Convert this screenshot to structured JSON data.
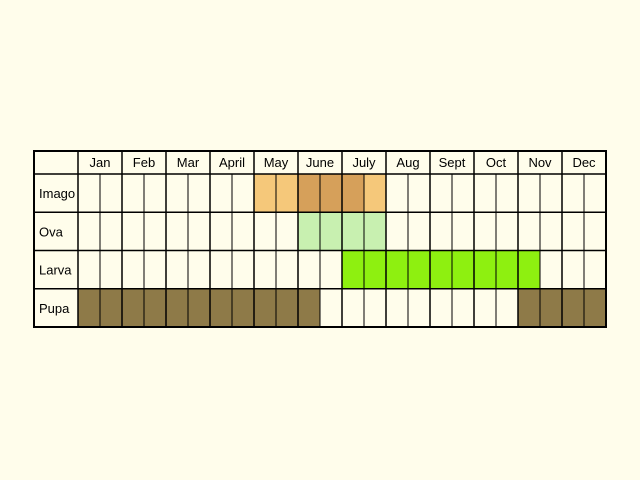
{
  "months": [
    "Jan",
    "Feb",
    "Mar",
    "April",
    "May",
    "June",
    "July",
    "Aug",
    "Sept",
    "Oct",
    "Nov",
    "Dec"
  ],
  "stages": [
    {
      "name": "Imago",
      "slots": [
        [
          null,
          null
        ],
        [
          null,
          null
        ],
        [
          null,
          null
        ],
        [
          null,
          null
        ],
        [
          "#f5c87a",
          "#f5c87a"
        ],
        [
          "#d6a05a",
          "#d6a05a"
        ],
        [
          "#d6a05a",
          "#f5c87a"
        ],
        [
          null,
          null
        ],
        [
          null,
          null
        ],
        [
          null,
          null
        ],
        [
          null,
          null
        ],
        [
          null,
          null
        ]
      ]
    },
    {
      "name": "Ova",
      "slots": [
        [
          null,
          null
        ],
        [
          null,
          null
        ],
        [
          null,
          null
        ],
        [
          null,
          null
        ],
        [
          null,
          null
        ],
        [
          "#c8f0b0",
          "#c8f0b0"
        ],
        [
          "#c8f0b0",
          "#c8f0b0"
        ],
        [
          null,
          null
        ],
        [
          null,
          null
        ],
        [
          null,
          null
        ],
        [
          null,
          null
        ],
        [
          null,
          null
        ]
      ]
    },
    {
      "name": "Larva",
      "slots": [
        [
          null,
          null
        ],
        [
          null,
          null
        ],
        [
          null,
          null
        ],
        [
          null,
          null
        ],
        [
          null,
          null
        ],
        [
          null,
          null
        ],
        [
          "#8ef010",
          "#8ef010"
        ],
        [
          "#8ef010",
          "#8ef010"
        ],
        [
          "#8ef010",
          "#8ef010"
        ],
        [
          "#8ef010",
          "#8ef010"
        ],
        [
          "#8ef010",
          null
        ],
        [
          null,
          null
        ]
      ]
    },
    {
      "name": "Pupa",
      "slots": [
        [
          "#8e7a48",
          "#8e7a48"
        ],
        [
          "#8e7a48",
          "#8e7a48"
        ],
        [
          "#8e7a48",
          "#8e7a48"
        ],
        [
          "#8e7a48",
          "#8e7a48"
        ],
        [
          "#8e7a48",
          "#8e7a48"
        ],
        [
          "#8e7a48",
          null
        ],
        [
          null,
          null
        ],
        [
          null,
          null
        ],
        [
          null,
          null
        ],
        [
          null,
          null
        ],
        [
          "#8e7a48",
          "#8e7a48"
        ],
        [
          "#8e7a48",
          "#8e7a48"
        ]
      ]
    }
  ],
  "colors": {
    "background": "#fffdeb",
    "cell": "#fffdeb",
    "border": "#000000"
  }
}
